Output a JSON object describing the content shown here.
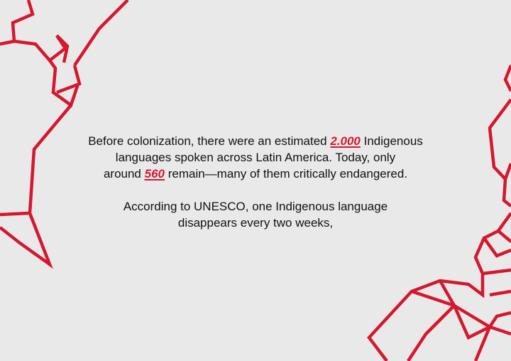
{
  "colors": {
    "background": "#e9e9e9",
    "accent": "#d3182f",
    "text": "#111111"
  },
  "paragraph_1": {
    "line_1_pre": "Before colonization, there were an estimated ",
    "highlight_1": "2.000",
    "line_1_post": " Indigenous",
    "line_2": "languages spoken across Latin America. Today, only",
    "line_3_pre": "around ",
    "highlight_2": "560",
    "line_3_post": " remain—many of them critically endangered."
  },
  "paragraph_2": {
    "line_1": "According to UNESCO, one Indigenous language",
    "line_2": "disappears every two weeks,"
  },
  "decorations": {
    "left_outline": "polygonal-map-outline-americas",
    "right_outline": "polygonal-map-outline-africa-europe"
  }
}
